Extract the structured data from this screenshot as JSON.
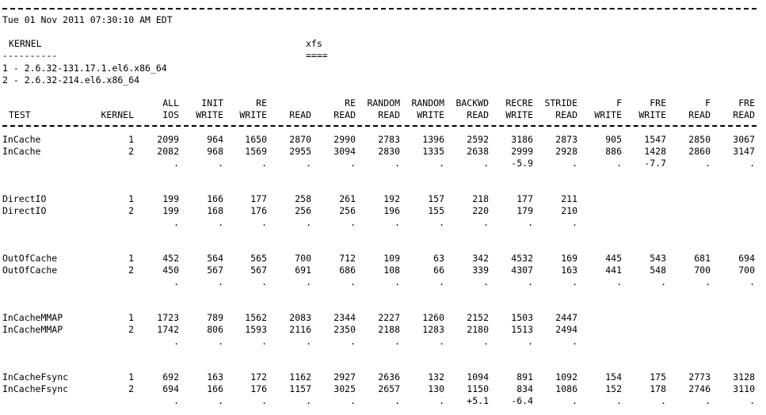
{
  "timestamp": "Tue 01 Nov 2011 07:30:10 AM EDT",
  "kernel": {
    "header": "KERNEL",
    "underline": "----------",
    "items": [
      "1 - 2.6.32-131.17.1.el6.x86_64",
      "2 - 2.6.32-214.el6.x86_64"
    ]
  },
  "filesystem": {
    "header": "xfs",
    "underline": "===="
  },
  "table": {
    "test_header": "TEST",
    "kernel_header": "KERNEL",
    "columns": [
      {
        "line1": "ALL",
        "line2": "IOS"
      },
      {
        "line1": "INIT",
        "line2": "WRITE"
      },
      {
        "line1": "RE",
        "line2": "WRITE"
      },
      {
        "line1": "",
        "line2": "READ"
      },
      {
        "line1": "RE",
        "line2": "READ"
      },
      {
        "line1": "RANDOM",
        "line2": "READ"
      },
      {
        "line1": "RANDOM",
        "line2": "WRITE"
      },
      {
        "line1": "BACKWD",
        "line2": "READ"
      },
      {
        "line1": "RECRE",
        "line2": "WRITE"
      },
      {
        "line1": "STRIDE",
        "line2": "READ"
      },
      {
        "line1": "F",
        "line2": "WRITE"
      },
      {
        "line1": "FRE",
        "line2": "WRITE"
      },
      {
        "line1": "F",
        "line2": "READ"
      },
      {
        "line1": "FRE",
        "line2": "READ"
      }
    ],
    "groups": [
      {
        "test": "InCache",
        "rows": [
          {
            "kernel": "1",
            "values": [
              "2099",
              "964",
              "1650",
              "2870",
              "2990",
              "2783",
              "1396",
              "2592",
              "3186",
              "2873",
              "905",
              "1547",
              "2850",
              "3067"
            ]
          },
          {
            "kernel": "2",
            "values": [
              "2082",
              "968",
              "1569",
              "2955",
              "3094",
              "2830",
              "1335",
              "2638",
              "2999",
              "2928",
              "886",
              "1428",
              "2860",
              "3147"
            ]
          }
        ],
        "diff": [
          ".",
          ".",
          ".",
          ".",
          ".",
          ".",
          ".",
          ".",
          "-5.9",
          ".",
          ".",
          "-7.7",
          ".",
          "."
        ]
      },
      {
        "test": "DirectIO",
        "rows": [
          {
            "kernel": "1",
            "values": [
              "199",
              "166",
              "177",
              "258",
              "261",
              "192",
              "157",
              "218",
              "177",
              "211",
              "",
              "",
              "",
              ""
            ]
          },
          {
            "kernel": "2",
            "values": [
              "199",
              "168",
              "176",
              "256",
              "256",
              "196",
              "155",
              "220",
              "179",
              "210",
              "",
              "",
              "",
              ""
            ]
          }
        ],
        "diff": [
          ".",
          ".",
          ".",
          ".",
          ".",
          ".",
          ".",
          ".",
          ".",
          ".",
          "",
          "",
          "",
          ""
        ]
      },
      {
        "test": "OutOfCache",
        "rows": [
          {
            "kernel": "1",
            "values": [
              "452",
              "564",
              "565",
              "700",
              "712",
              "109",
              "63",
              "342",
              "4532",
              "169",
              "445",
              "543",
              "681",
              "694"
            ]
          },
          {
            "kernel": "2",
            "values": [
              "450",
              "567",
              "567",
              "691",
              "686",
              "108",
              "66",
              "339",
              "4307",
              "163",
              "441",
              "548",
              "700",
              "700"
            ]
          }
        ],
        "diff": [
          ".",
          ".",
          ".",
          ".",
          ".",
          ".",
          ".",
          ".",
          ".",
          ".",
          ".",
          ".",
          ".",
          "."
        ]
      },
      {
        "test": "InCacheMMAP",
        "rows": [
          {
            "kernel": "1",
            "values": [
              "1723",
              "789",
              "1562",
              "2083",
              "2344",
              "2227",
              "1260",
              "2152",
              "1503",
              "2447",
              "",
              "",
              "",
              ""
            ]
          },
          {
            "kernel": "2",
            "values": [
              "1742",
              "806",
              "1593",
              "2116",
              "2350",
              "2188",
              "1283",
              "2180",
              "1513",
              "2494",
              "",
              "",
              "",
              ""
            ]
          }
        ],
        "diff": [
          ".",
          ".",
          ".",
          ".",
          ".",
          ".",
          ".",
          ".",
          ".",
          ".",
          "",
          "",
          "",
          ""
        ]
      },
      {
        "test": "InCacheFsync",
        "rows": [
          {
            "kernel": "1",
            "values": [
              "692",
              "163",
              "172",
              "1162",
              "2927",
              "2636",
              "132",
              "1094",
              "891",
              "1092",
              "154",
              "175",
              "2773",
              "3128"
            ]
          },
          {
            "kernel": "2",
            "values": [
              "694",
              "166",
              "176",
              "1157",
              "3025",
              "2657",
              "130",
              "1150",
              "834",
              "1086",
              "152",
              "178",
              "2746",
              "3110"
            ]
          }
        ],
        "diff": [
          ".",
          ".",
          ".",
          ".",
          ".",
          ".",
          ".",
          "+5.1",
          "-6.4",
          ".",
          ".",
          ".",
          ".",
          "."
        ]
      }
    ]
  }
}
